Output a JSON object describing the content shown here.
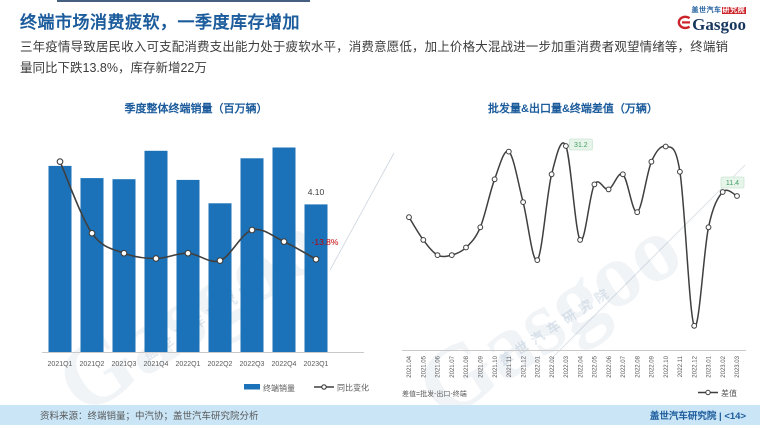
{
  "header": {
    "title": "终端市场消费疲软，一季度库存增加",
    "logo": {
      "brand": "Gasgoo",
      "tagline_blue": "盖世汽车",
      "tagline_red": "研究院"
    }
  },
  "intro": "三年疫情导致居民收入可支配消费支出能力处于疲软水平，消费意愿低，加上价格大混战进一步加重消费者观望情绪等，终端销量同比下跌13.8%，库存新增22万",
  "chart_data": [
    {
      "type": "bar",
      "title": "季度整体终端销量（百万辆）",
      "categories": [
        "2021Q1",
        "2021Q2",
        "2021Q3",
        "2021Q4",
        "2022Q1",
        "2022Q2",
        "2022Q3",
        "2022Q4",
        "2023Q1"
      ],
      "series": [
        {
          "name": "终端销量",
          "type": "bar",
          "values": [
            5.17,
            4.83,
            4.8,
            5.59,
            4.78,
            4.13,
            5.38,
            5.68,
            4.1
          ]
        },
        {
          "name": "同比变化",
          "type": "line",
          "unit": "%",
          "values": [
            79,
            11,
            -8,
            -13,
            -8,
            -15,
            14,
            3,
            -13.8
          ]
        }
      ],
      "data_labels": [
        {
          "series": 0,
          "index": 8,
          "text": "4.10",
          "color": "#404040"
        },
        {
          "series": 1,
          "index": 8,
          "text": "-13.8%",
          "color": "#c00000"
        }
      ],
      "ylabel": "",
      "xlabel": "",
      "grid": false,
      "legend_position": "bottom-right"
    },
    {
      "type": "line",
      "title": "批发量&出口量&终端差值（万辆）",
      "x": [
        "2021.04",
        "2021.05",
        "2021.06",
        "2021.07",
        "2021.08",
        "2021.09",
        "2021.10",
        "2021.11",
        "2021.12",
        "2022.01",
        "2022.02",
        "2022.03",
        "2022.04",
        "2022.05",
        "2022.06",
        "2022.07",
        "2022.08",
        "2022.09",
        "2022.10",
        "2022.11",
        "2022.12",
        "2023.01",
        "2023.02",
        "2023.03"
      ],
      "series": [
        {
          "name": "差值",
          "values": [
            3,
            -6,
            -12,
            -12,
            -9,
            -1,
            18,
            29,
            9,
            -14,
            20,
            31.2,
            -6,
            16,
            14,
            20,
            5,
            25,
            31,
            21,
            -40,
            -1,
            13,
            11.4
          ]
        }
      ],
      "data_labels": [
        {
          "index": 11,
          "text": "31.2",
          "placement": "right-above"
        },
        {
          "index": 23,
          "text": "11.4",
          "placement": "left-above"
        }
      ],
      "note": "差值=批发-出口-终端",
      "ylim": [
        -50,
        35
      ],
      "grid": false,
      "legend_position": "bottom-right"
    }
  ],
  "footer": {
    "source": "资料来源：终端销量；中汽协；盖世汽车研究院分析",
    "branding": "盖世汽车研究院 | <14>"
  },
  "watermark": {
    "text": "Gasgoo",
    "subtext": "盖世汽车研究院"
  },
  "colors": {
    "accent_blue": "#1c5c9c",
    "bar_blue": "#1b72b8",
    "line_gray": "#3f3f3f",
    "negative_red": "#c00000",
    "label_green": "#3f9e63",
    "label_green_bg": "#e7f4ea",
    "label_green_border": "#cde6d4",
    "axis_gray": "#c9c9c9",
    "tick_gray": "#595959",
    "footer_band": "#c9e5f6",
    "logo_red": "#cc2229",
    "logo_navy": "#17375e"
  }
}
